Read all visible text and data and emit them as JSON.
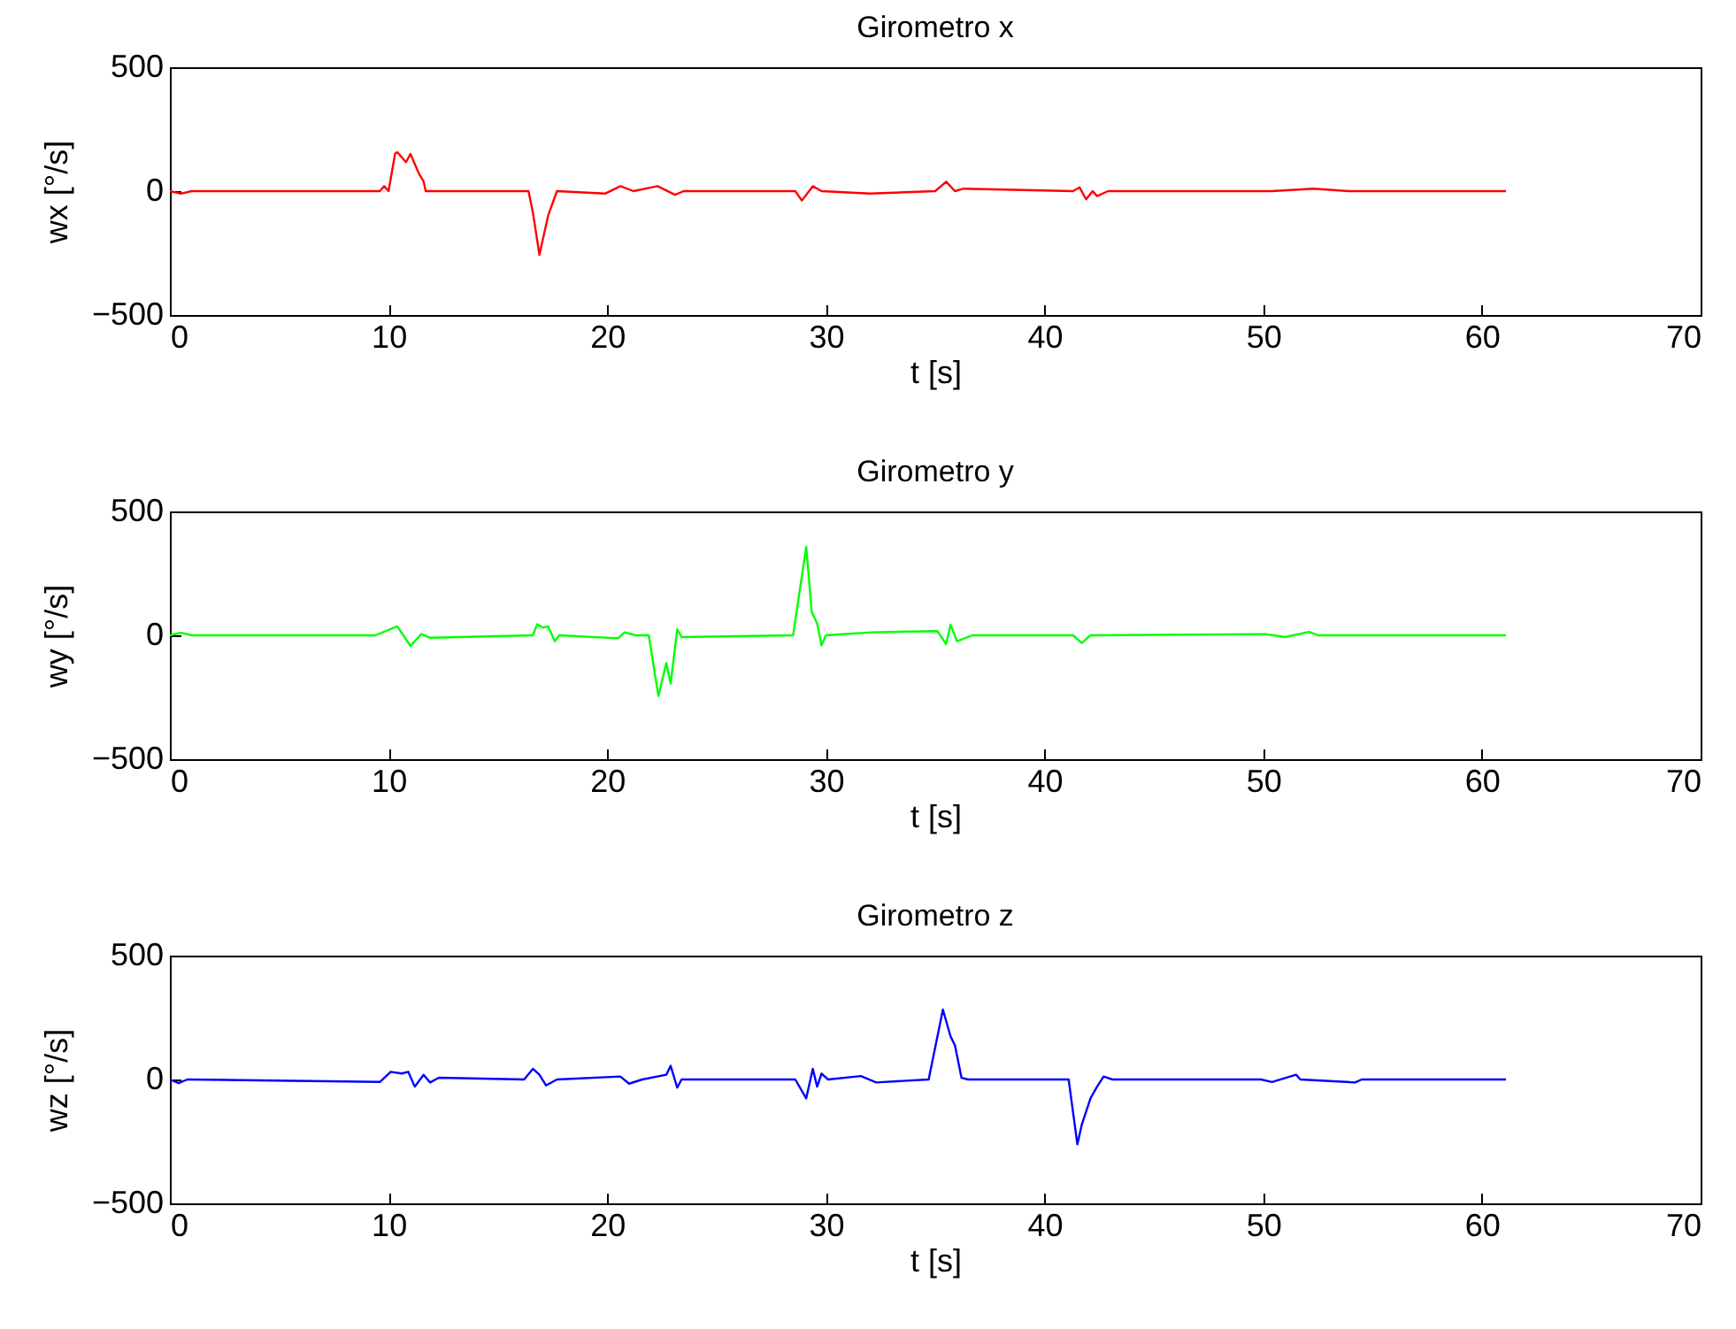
{
  "chart_data": [
    {
      "type": "line",
      "title": "Girometro x",
      "xlabel": "t [s]",
      "ylabel": "wx [°/s]",
      "xlim": [
        0,
        70
      ],
      "xticks": [
        0,
        10,
        20,
        30,
        40,
        50,
        60,
        70
      ],
      "ylim": [
        -500,
        500
      ],
      "yticks": [
        -500,
        0,
        500
      ],
      "x": [
        0,
        0.5,
        1,
        5,
        9.6,
        9.8,
        10.0,
        10.3,
        10.4,
        10.8,
        11.0,
        11.4,
        11.6,
        11.7,
        16.4,
        16.6,
        16.9,
        17.3,
        17.7,
        19.9,
        20.6,
        21.2,
        22.3,
        23.1,
        23.5,
        28.6,
        28.9,
        29.4,
        29.8,
        32.0,
        35.0,
        35.5,
        35.9,
        36.3,
        41.3,
        41.6,
        41.9,
        42.2,
        42.4,
        42.9,
        50.4,
        52.3,
        53.9,
        61.1
      ],
      "series": [
        {
          "color": "#ff0000",
          "values": [
            0,
            -10,
            0,
            0,
            0,
            20,
            0,
            152,
            157,
            117,
            150,
            69,
            40,
            0,
            0,
            -86,
            -257,
            -98,
            0,
            -10,
            20,
            0,
            20,
            -15,
            0,
            0,
            -38,
            20,
            0,
            -10,
            0,
            38,
            0,
            10,
            0,
            15,
            -33,
            0,
            -20,
            0,
            0,
            10,
            0,
            0
          ]
        }
      ]
    },
    {
      "type": "line",
      "title": "Girometro y",
      "xlabel": "t [s]",
      "ylabel": "wy [°/s]",
      "xlim": [
        0,
        70
      ],
      "xticks": [
        0,
        10,
        20,
        30,
        40,
        50,
        60,
        70
      ],
      "ylim": [
        -500,
        500
      ],
      "yticks": [
        -500,
        0,
        500
      ],
      "x": [
        0,
        0.5,
        1,
        9.4,
        10.4,
        11.0,
        11.5,
        11.9,
        16.6,
        16.8,
        17.05,
        17.3,
        17.6,
        17.8,
        20.5,
        20.8,
        21.3,
        21.9,
        22.34,
        22.7,
        22.9,
        23.2,
        23.4,
        28.5,
        29.1,
        29.35,
        29.6,
        29.8,
        30.0,
        32.1,
        35.1,
        35.5,
        35.7,
        36.0,
        36.7,
        41.3,
        41.7,
        42.1,
        50.1,
        51.0,
        52.1,
        52.5,
        61.1
      ],
      "series": [
        {
          "color": "#00ff00",
          "values": [
            0,
            10,
            0,
            0,
            36,
            -43,
            5,
            -10,
            0,
            45,
            31,
            36,
            -24,
            0,
            -12,
            12,
            0,
            0,
            -245,
            -112,
            -195,
            24,
            -7,
            0,
            357,
            95,
            48,
            -40,
            0,
            12,
            17,
            -36,
            43,
            -24,
            0,
            0,
            -31,
            0,
            5,
            -7,
            14,
            0,
            0
          ]
        }
      ]
    },
    {
      "type": "line",
      "title": "Girometro z",
      "xlabel": "t [s]",
      "ylabel": "wz [°/s]",
      "xlim": [
        0,
        70
      ],
      "xticks": [
        0,
        10,
        20,
        30,
        40,
        50,
        60,
        70
      ],
      "ylim": [
        -500,
        500
      ],
      "yticks": [
        -500,
        0,
        500
      ],
      "x": [
        0,
        0.4,
        0.8,
        9.6,
        10.1,
        10.6,
        10.9,
        11.2,
        11.6,
        11.9,
        12.3,
        16.2,
        16.6,
        16.9,
        17.2,
        17.7,
        20.6,
        21.0,
        21.6,
        22.7,
        22.9,
        23.2,
        23.4,
        28.6,
        29.1,
        29.4,
        29.6,
        29.8,
        30.1,
        31.6,
        32.3,
        34.7,
        35.35,
        35.7,
        35.9,
        36.2,
        36.5,
        41.1,
        41.5,
        41.7,
        42.1,
        42.4,
        42.7,
        43.1,
        49.9,
        50.4,
        51.5,
        51.7,
        54.2,
        54.5,
        61.1
      ],
      "series": [
        {
          "color": "#0000ff",
          "values": [
            0,
            -15,
            0,
            -10,
            31,
            24,
            31,
            -29,
            19,
            -12,
            7,
            0,
            43,
            19,
            -24,
            0,
            12,
            -17,
            0,
            19,
            55,
            -33,
            0,
            0,
            -76,
            43,
            -29,
            24,
            0,
            14,
            -12,
            0,
            282,
            174,
            138,
            7,
            0,
            0,
            -262,
            -183,
            -76,
            -29,
            12,
            0,
            0,
            -10,
            19,
            0,
            -12,
            0,
            0
          ]
        }
      ]
    }
  ]
}
